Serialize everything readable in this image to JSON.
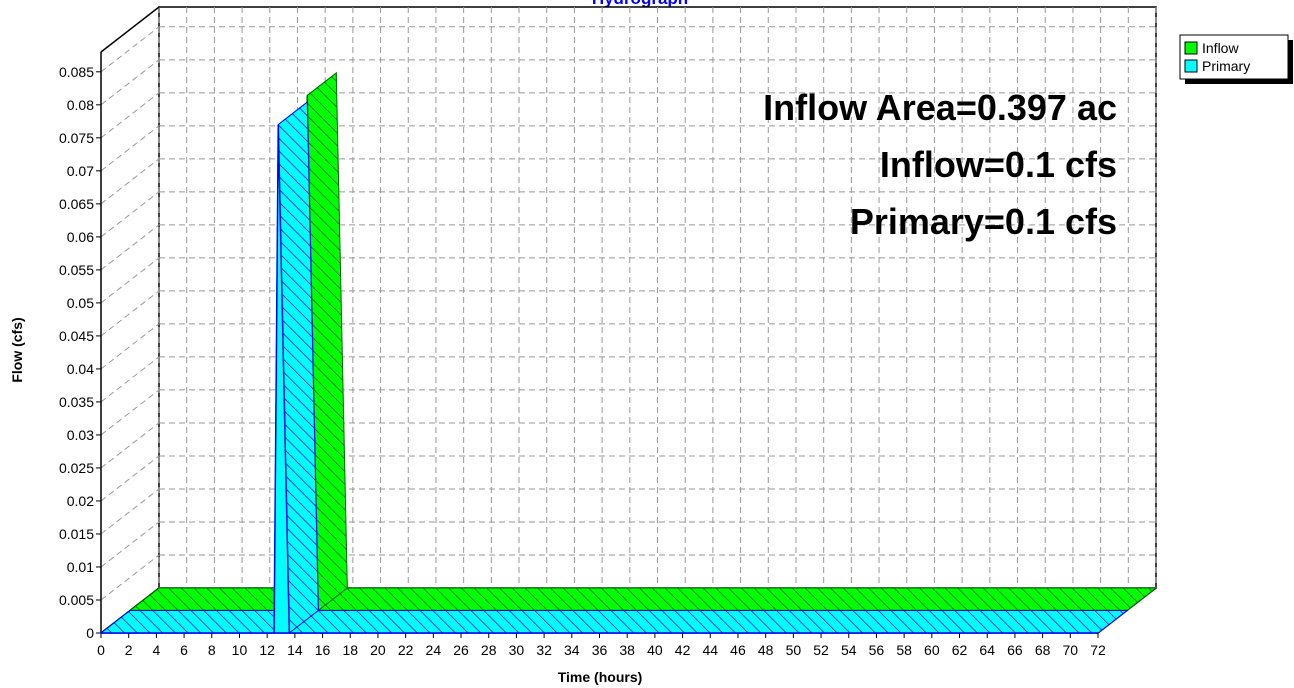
{
  "chart_data": {
    "type": "area3d",
    "title": "Hydrograph",
    "x_label": "Time  (hours)",
    "y_label": "Flow  (cfs)",
    "x": [
      0,
      12.5,
      12.8,
      13.6,
      72
    ],
    "series": [
      {
        "name": "Inflow",
        "color": "#00ff00",
        "edge_color": "#006400",
        "values": [
          0,
          0,
          0.078,
          0,
          0
        ]
      },
      {
        "name": "Primary",
        "color": "#00ffff",
        "edge_color": "#0000ff",
        "values": [
          0,
          0,
          0.077,
          0,
          0
        ]
      }
    ],
    "xlim": [
      0,
      72
    ],
    "xticks": [
      0,
      2,
      4,
      6,
      8,
      10,
      12,
      14,
      16,
      18,
      20,
      22,
      24,
      26,
      28,
      30,
      32,
      34,
      36,
      38,
      40,
      42,
      44,
      46,
      48,
      50,
      52,
      54,
      56,
      58,
      60,
      62,
      64,
      66,
      68,
      70,
      72
    ],
    "ylim": [
      0,
      0.088
    ],
    "yticks": [
      0,
      0.005,
      0.01,
      0.015,
      0.02,
      0.025,
      0.03,
      0.035,
      0.04,
      0.045,
      0.05,
      0.055,
      0.06,
      0.065,
      0.07,
      0.075,
      0.08,
      0.085
    ],
    "grid": true,
    "legend": "top-right",
    "annotations": [
      "Inflow Area=0.397 ac",
      "Inflow=0.1 cfs",
      "Primary=0.1 cfs"
    ]
  }
}
